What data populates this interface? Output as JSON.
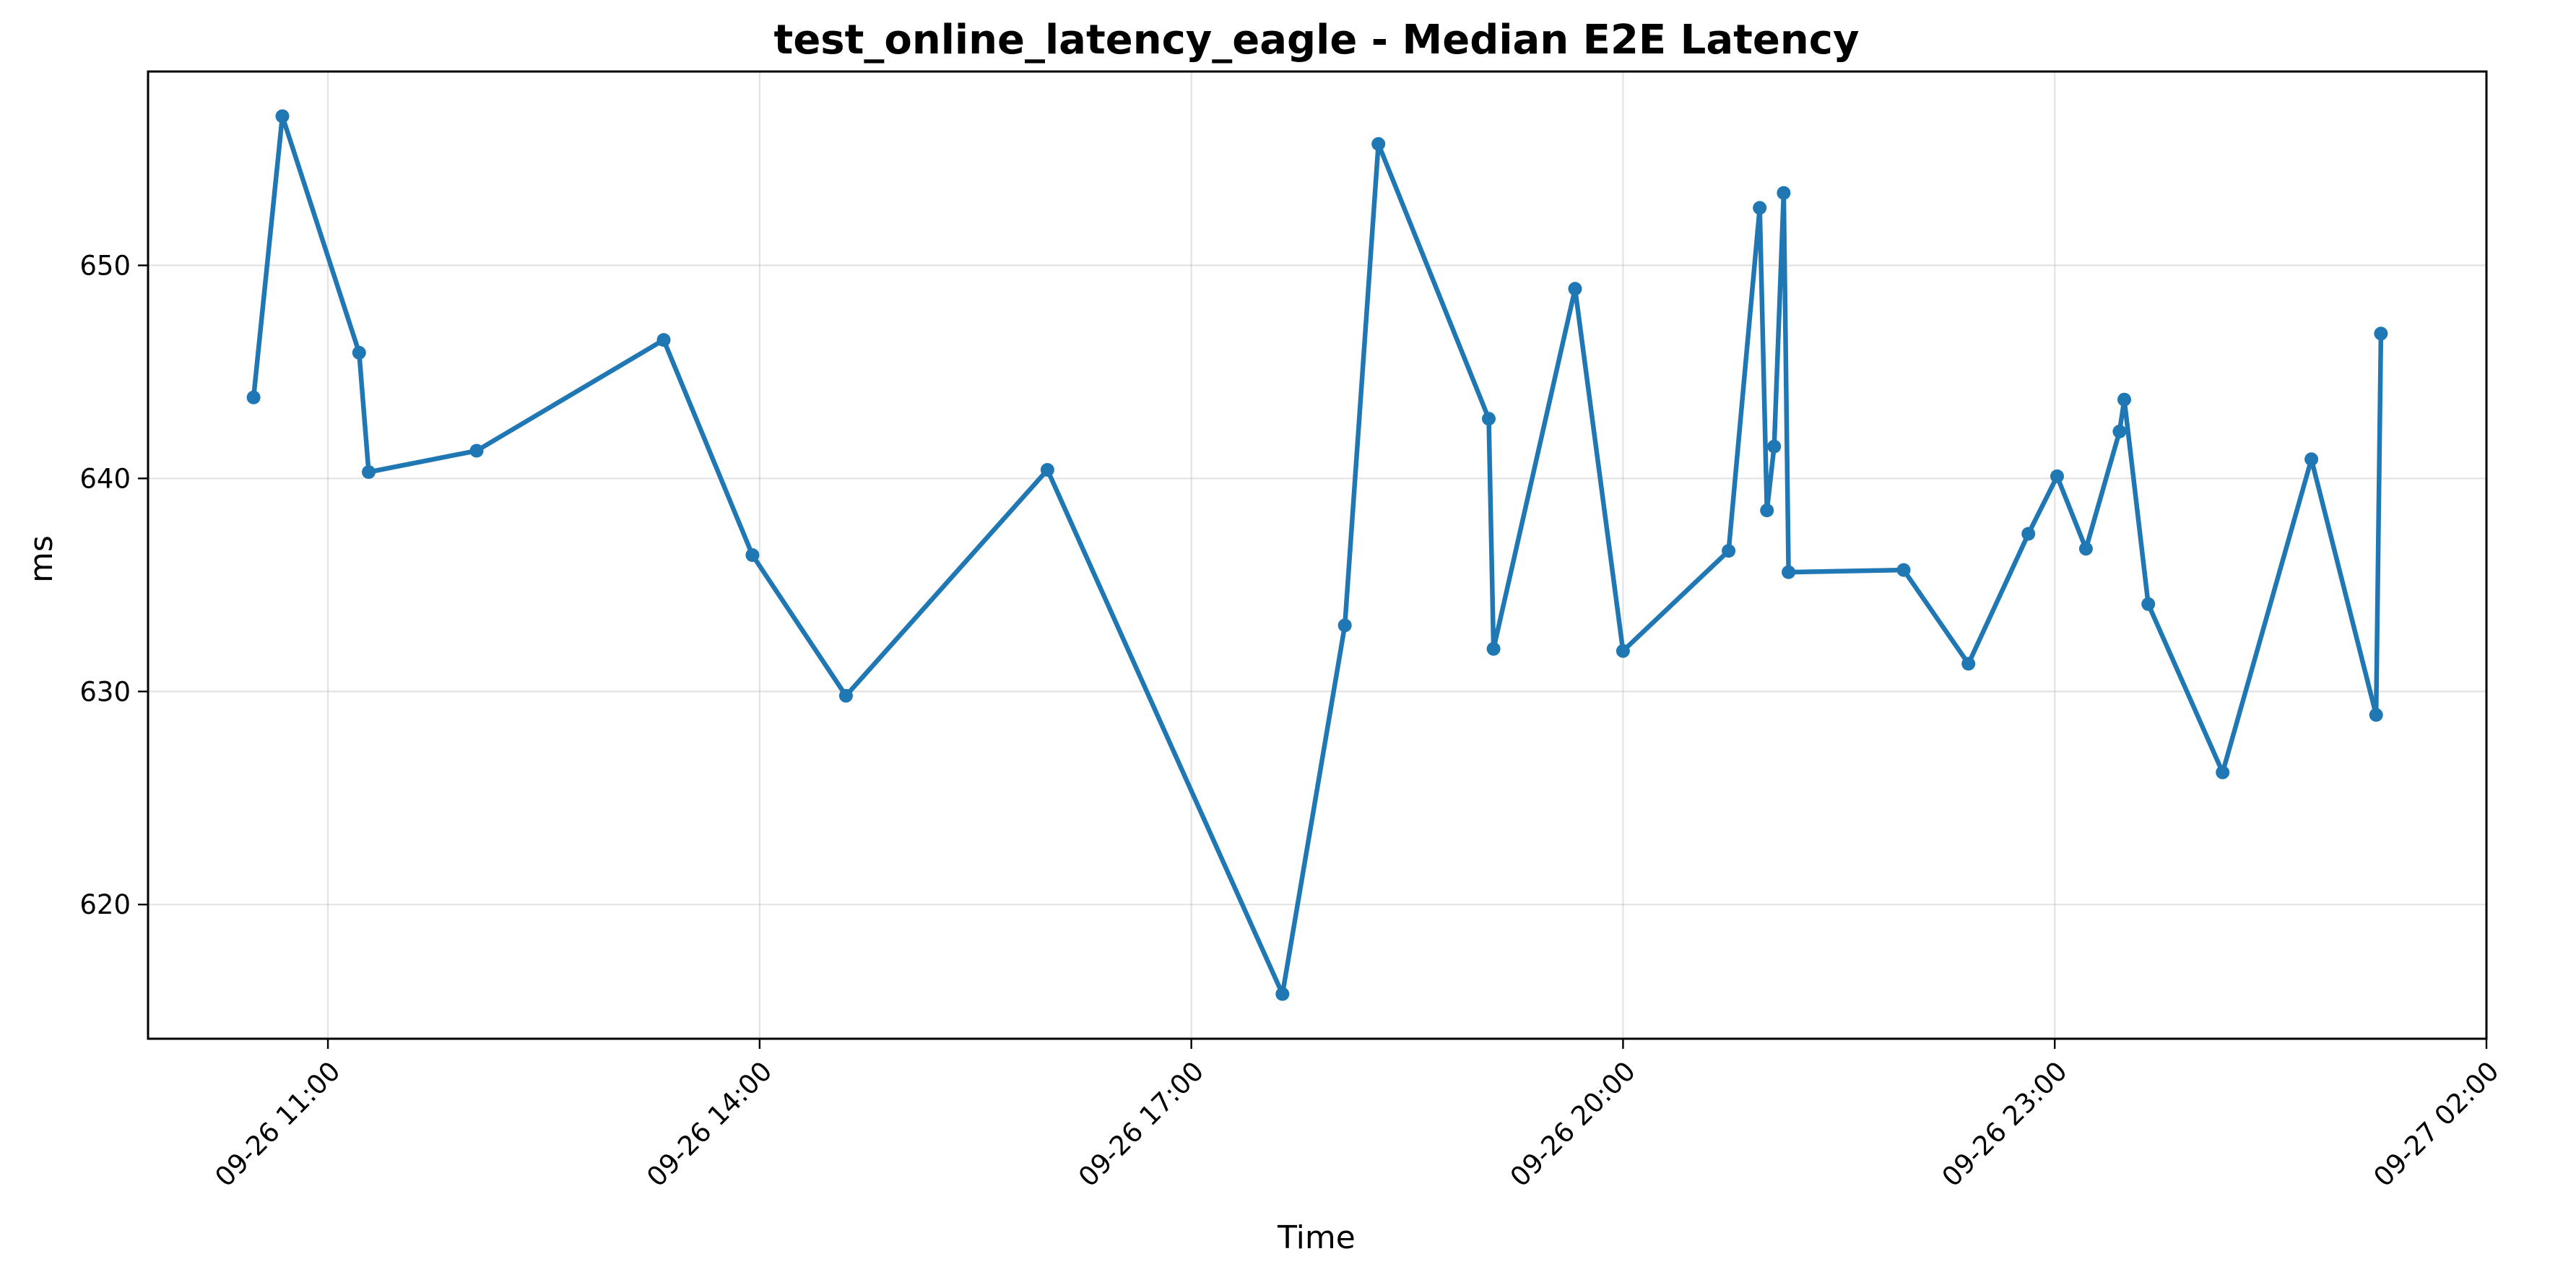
{
  "chart_data": {
    "type": "line",
    "title": "test_online_latency_eagle - Median E2E Latency",
    "xlabel": "Time",
    "ylabel": "ms",
    "ylim": [
      613.7,
      659.1
    ],
    "xlim": [
      "2025-09-26T09:45",
      "2025-09-27T02:00"
    ],
    "grid": true,
    "color": "#1f77b4",
    "x_ticks": [
      {
        "t": "2025-09-26T11:00",
        "label": "09-26 11:00"
      },
      {
        "t": "2025-09-26T14:00",
        "label": "09-26 14:00"
      },
      {
        "t": "2025-09-26T17:00",
        "label": "09-26 17:00"
      },
      {
        "t": "2025-09-26T20:00",
        "label": "09-26 20:00"
      },
      {
        "t": "2025-09-26T23:00",
        "label": "09-26 23:00"
      },
      {
        "t": "2025-09-27T02:00",
        "label": "09-27 02:00"
      }
    ],
    "y_ticks": [
      {
        "v": 620,
        "label": "620"
      },
      {
        "v": 630,
        "label": "630"
      },
      {
        "v": 640,
        "label": "640"
      },
      {
        "v": 650,
        "label": "650"
      }
    ],
    "series": [
      {
        "x": [
          "2025-09-26T10:29",
          "2025-09-26T10:41",
          "2025-09-26T11:13",
          "2025-09-26T11:17",
          "2025-09-26T12:02",
          "2025-09-26T13:20",
          "2025-09-26T13:57",
          "2025-09-26T14:36",
          "2025-09-26T16:00",
          "2025-09-26T17:38",
          "2025-09-26T18:04",
          "2025-09-26T18:18",
          "2025-09-26T19:04",
          "2025-09-26T19:06",
          "2025-09-26T19:40",
          "2025-09-26T20:00",
          "2025-09-26T20:44",
          "2025-09-26T20:57",
          "2025-09-26T21:00",
          "2025-09-26T21:03",
          "2025-09-26T21:07",
          "2025-09-26T21:09",
          "2025-09-26T21:57",
          "2025-09-26T22:24",
          "2025-09-26T22:49",
          "2025-09-26T23:01",
          "2025-09-26T23:13",
          "2025-09-26T23:27",
          "2025-09-26T23:29",
          "2025-09-26T23:39",
          "2025-09-27T00:10",
          "2025-09-27T00:47",
          "2025-09-27T01:14",
          "2025-09-27T01:16"
        ],
        "y": [
          643.8,
          657.0,
          645.9,
          640.3,
          641.3,
          646.5,
          636.4,
          629.8,
          640.4,
          615.8,
          633.1,
          655.7,
          642.8,
          632.0,
          648.9,
          631.9,
          636.6,
          652.7,
          638.5,
          641.5,
          653.4,
          635.6,
          635.7,
          631.3,
          637.4,
          640.1,
          636.7,
          642.2,
          643.7,
          634.1,
          626.2,
          640.9,
          628.9,
          646.8
        ]
      }
    ]
  }
}
